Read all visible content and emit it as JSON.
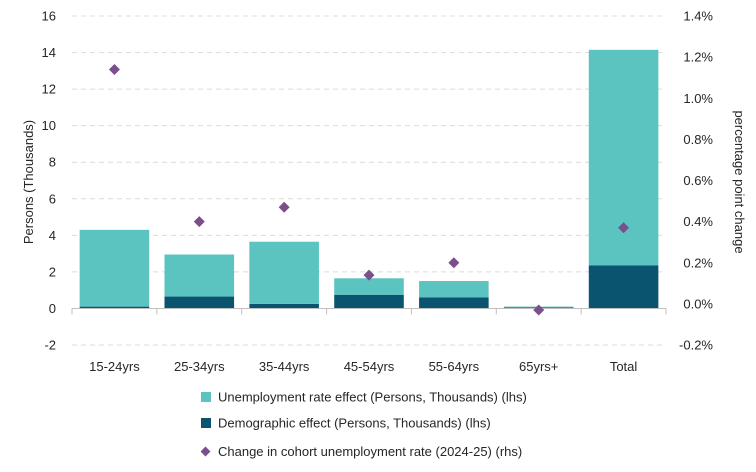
{
  "chart_data": {
    "type": "bar",
    "subtype": "stacked-bar-with-scatter",
    "categories": [
      "15-24yrs",
      "25-34yrs",
      "35-44yrs",
      "45-54yrs",
      "55-64yrs",
      "65yrs+",
      "Total"
    ],
    "series": [
      {
        "name": "Unemployment rate effect (Persons, Thousands) (lhs)",
        "axis": "left",
        "kind": "bar",
        "color": "#5BC4C1",
        "values": [
          4.2,
          2.3,
          3.4,
          0.9,
          0.9,
          0.05,
          11.8
        ]
      },
      {
        "name": "Demographic effect (Persons, Thousands) (lhs)",
        "axis": "left",
        "kind": "bar",
        "color": "#0B5470",
        "values": [
          0.1,
          0.65,
          0.25,
          0.75,
          0.6,
          0.05,
          2.35
        ]
      },
      {
        "name": "Change in cohort unemployment rate (2024-25) (rhs)",
        "axis": "right",
        "kind": "scatter",
        "marker": "diamond",
        "color": "#7B4F8C",
        "values": [
          1.14,
          0.4,
          0.47,
          0.14,
          0.2,
          -0.03,
          0.37
        ]
      }
    ],
    "left_axis": {
      "label": "Persons (Thousands)",
      "range": [
        -2,
        16
      ],
      "ticks": [
        -2,
        0,
        2,
        4,
        6,
        8,
        10,
        12,
        14,
        16
      ],
      "tick_labels": [
        "-2",
        "0",
        "2",
        "4",
        "6",
        "8",
        "10",
        "12",
        "14",
        "16"
      ]
    },
    "right_axis": {
      "label": "percentage point change",
      "range": [
        -0.2,
        1.4
      ],
      "ticks": [
        -0.2,
        0.0,
        0.2,
        0.4,
        0.6,
        0.8,
        1.0,
        1.2,
        1.4
      ],
      "tick_labels": [
        "-0.2%",
        "0.0%",
        "0.2%",
        "0.4%",
        "0.6%",
        "0.8%",
        "1.0%",
        "1.2%",
        "1.4%"
      ]
    },
    "grid": true,
    "legend_position": "bottom"
  }
}
